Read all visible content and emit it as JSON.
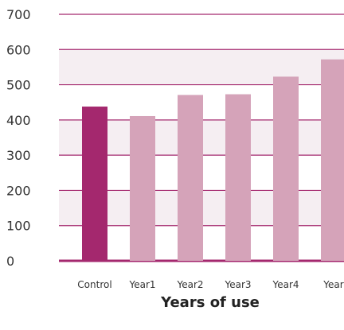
{
  "chart_data": {
    "type": "bar",
    "title": "",
    "xlabel": "Years of use",
    "ylabel": "",
    "categories": [
      "Control",
      "Year1",
      "Year2",
      "Year3",
      "Year4",
      "Year"
    ],
    "values": [
      438,
      411,
      471,
      473,
      523,
      572
    ],
    "ylim": [
      0,
      700
    ],
    "yticks": [
      0,
      100,
      200,
      300,
      400,
      500,
      600,
      700
    ],
    "grid": true,
    "legend": "none",
    "colors": {
      "highlight_bar": "#a4286e",
      "bar": "#d5a3b9",
      "band": "#f5eef2",
      "gridline": "#a4286e",
      "text": "#333333"
    }
  }
}
